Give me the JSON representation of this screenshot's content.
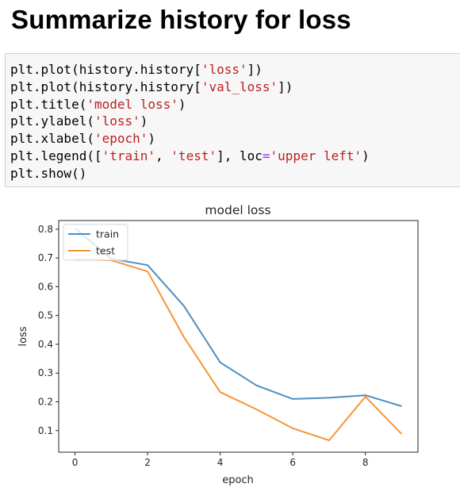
{
  "heading": "Summarize history for loss",
  "code": {
    "lines": [
      [
        {
          "t": "plt.plot(history.history["
        },
        {
          "t": "'loss'",
          "c": "str"
        },
        {
          "t": "])"
        }
      ],
      [
        {
          "t": "plt.plot(history.history["
        },
        {
          "t": "'val_loss'",
          "c": "str"
        },
        {
          "t": "])"
        }
      ],
      [
        {
          "t": "plt.title("
        },
        {
          "t": "'model loss'",
          "c": "str"
        },
        {
          "t": ")"
        }
      ],
      [
        {
          "t": "plt.ylabel("
        },
        {
          "t": "'loss'",
          "c": "str"
        },
        {
          "t": ")"
        }
      ],
      [
        {
          "t": "plt.xlabel("
        },
        {
          "t": "'epoch'",
          "c": "str"
        },
        {
          "t": ")"
        }
      ],
      [
        {
          "t": "plt.legend(["
        },
        {
          "t": "'train'",
          "c": "str"
        },
        {
          "t": ", "
        },
        {
          "t": "'test'",
          "c": "str"
        },
        {
          "t": "], loc"
        },
        {
          "t": "=",
          "c": "eq"
        },
        {
          "t": "'upper left'",
          "c": "str"
        },
        {
          "t": ")"
        }
      ],
      [
        {
          "t": "plt.show()"
        }
      ]
    ]
  },
  "colors": {
    "train": "#4c8fc2",
    "test": "#f5953a"
  },
  "chart_data": {
    "type": "line",
    "title": "model loss",
    "xlabel": "epoch",
    "ylabel": "loss",
    "xlim": [
      -0.45,
      9.45
    ],
    "ylim": [
      0.025,
      0.83
    ],
    "xticks": [
      0,
      2,
      4,
      6,
      8
    ],
    "yticks": [
      0.1,
      0.2,
      0.3,
      0.4,
      0.5,
      0.6,
      0.7,
      0.8
    ],
    "grid": false,
    "legend_loc": "upper left",
    "x": [
      0,
      1,
      2,
      3,
      4,
      5,
      6,
      7,
      8,
      9
    ],
    "series": [
      {
        "name": "train",
        "color": "#4c8fc2",
        "values": [
          0.803,
          0.697,
          0.675,
          0.533,
          0.337,
          0.257,
          0.21,
          0.214,
          0.223,
          0.185
        ]
      },
      {
        "name": "test",
        "color": "#f5953a",
        "values": [
          0.695,
          0.692,
          0.653,
          0.425,
          0.234,
          0.174,
          0.108,
          0.066,
          0.218,
          0.088
        ]
      }
    ]
  }
}
